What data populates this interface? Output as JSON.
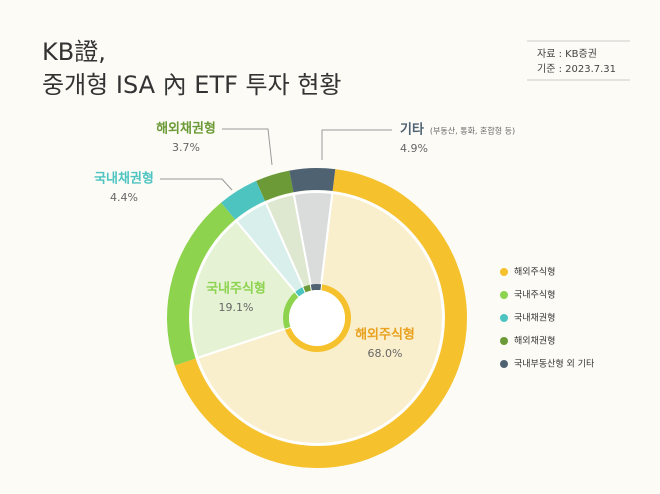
{
  "chart_data": {
    "type": "pie",
    "title": [
      "KB證,",
      "중개형 ISA 內 ETF 투자 현황"
    ],
    "source": [
      "자료 : KB증권",
      "기준 : 2023.7.31"
    ],
    "categories": [
      "해외주식형",
      "국내주식형",
      "국내채권형",
      "해외채권형",
      "기타"
    ],
    "category_notes": [
      null,
      null,
      null,
      null,
      "(부동산, 통화, 혼합형 등)"
    ],
    "values": [
      68.0,
      19.1,
      4.4,
      3.7,
      4.9
    ],
    "value_labels": [
      "68.0%",
      "19.1%",
      "4.4%",
      "3.7%",
      "4.9%"
    ],
    "series": [
      {
        "name": "해외주식형",
        "color": "#f5c12c"
      },
      {
        "name": "국내주식형",
        "color": "#8dd34e"
      },
      {
        "name": "국내채권형",
        "color": "#4ec4c1"
      },
      {
        "name": "해외채권형",
        "color": "#6b9a36"
      },
      {
        "name": "국내부동산형 외 기타",
        "color": "#4f6272"
      }
    ]
  }
}
